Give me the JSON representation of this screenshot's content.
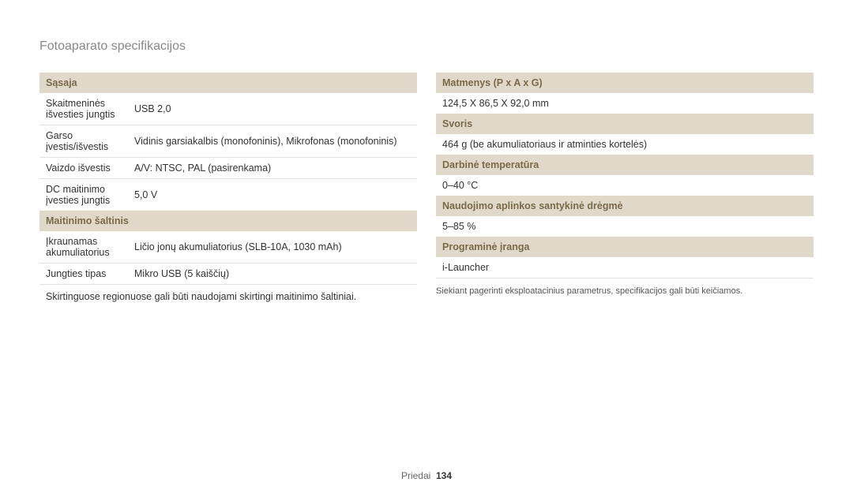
{
  "title": "Fotoaparato specifikacijos",
  "left": {
    "section1_header": "Sąsaja",
    "rows1": [
      {
        "label": "Skaitmeninės išvesties jungtis",
        "value": "USB 2,0"
      },
      {
        "label": "Garso įvestis/išvestis",
        "value": "Vidinis garsiakalbis (monofoninis), Mikrofonas (monofoninis)"
      },
      {
        "label": "Vaizdo išvestis",
        "value": "A/V: NTSC, PAL (pasirenkama)"
      },
      {
        "label": "DC maitinimo įvesties jungtis",
        "value": "5,0 V"
      }
    ],
    "section2_header": "Maitinimo šaltinis",
    "rows2": [
      {
        "label": "Įkraunamas akumuliatorius",
        "value": "Ličio jonų akumuliatorius (SLB-10A, 1030 mAh)"
      },
      {
        "label": "Jungties tipas",
        "value": "Mikro USB (5 kaiščių)"
      }
    ],
    "note": "Skirtinguose regionuose gali būti naudojami skirtingi maitinimo šaltiniai."
  },
  "right": {
    "sections": [
      {
        "header": "Matmenys (P x A x G)",
        "value": "124,5 X 86,5 X 92,0 mm"
      },
      {
        "header": "Svoris",
        "value": "464 g (be akumuliatoriaus ir atminties kortelės)"
      },
      {
        "header": "Darbinė temperatūra",
        "value": "0–40 °C"
      },
      {
        "header": "Naudojimo aplinkos santykinė drėgmė",
        "value": "5–85 %"
      },
      {
        "header": "Programinė įranga",
        "value": "i-Launcher"
      }
    ],
    "bottom_note": "Siekiant pagerinti eksploatacinius parametrus, specifikacijos gali būti keičiamos."
  },
  "footer": {
    "section": "Priedai",
    "page": "134"
  },
  "colors": {
    "header_bg": "#e0d9c9",
    "header_text": "#7a6a4a",
    "border": "#e2e2e2",
    "title": "#888888",
    "text": "#333333"
  }
}
